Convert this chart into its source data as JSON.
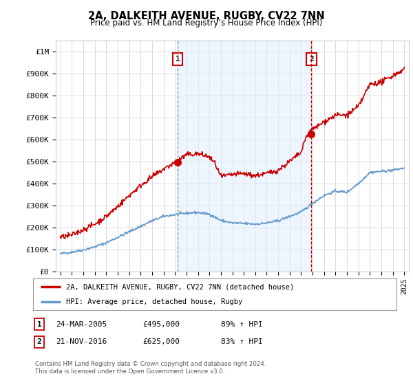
{
  "title": "2A, DALKEITH AVENUE, RUGBY, CV22 7NN",
  "subtitle": "Price paid vs. HM Land Registry’s House Price Index (HPI)",
  "ylabel_ticks": [
    "£0",
    "£100K",
    "£200K",
    "£300K",
    "£400K",
    "£500K",
    "£600K",
    "£700K",
    "£800K",
    "£900K",
    "£1M"
  ],
  "ytick_values": [
    0,
    100000,
    200000,
    300000,
    400000,
    500000,
    600000,
    700000,
    800000,
    900000,
    1000000
  ],
  "ylim": [
    0,
    1050000
  ],
  "xlim_start": 1994.6,
  "xlim_end": 2025.4,
  "xtick_years": [
    1995,
    1996,
    1997,
    1998,
    1999,
    2000,
    2001,
    2002,
    2003,
    2004,
    2005,
    2006,
    2007,
    2008,
    2009,
    2010,
    2011,
    2012,
    2013,
    2014,
    2015,
    2016,
    2017,
    2018,
    2019,
    2020,
    2021,
    2022,
    2023,
    2024,
    2025
  ],
  "sale1_x": 2005.23,
  "sale1_y": 495000,
  "sale2_x": 2016.9,
  "sale2_y": 625000,
  "vline1_color": "#aaaaaa",
  "vline2_color": "#cc0000",
  "vline_style": "--",
  "marker_color": "#cc0000",
  "fill_color": "#ddeeff",
  "fill_alpha": 0.5,
  "hpi_line_color": "#6699cc",
  "price_line_color": "#cc0000",
  "background_color": "#ffffff",
  "grid_color": "#cccccc",
  "legend_entry1": "2A, DALKEITH AVENUE, RUGBY, CV22 7NN (detached house)",
  "legend_entry2": "HPI: Average price, detached house, Rugby",
  "table_row1": [
    "1",
    "24-MAR-2005",
    "£495,000",
    "89% ↑ HPI"
  ],
  "table_row2": [
    "2",
    "21-NOV-2016",
    "£625,000",
    "83% ↑ HPI"
  ],
  "footnote": "Contains HM Land Registry data © Crown copyright and database right 2024.\nThis data is licensed under the Open Government Licence v3.0."
}
